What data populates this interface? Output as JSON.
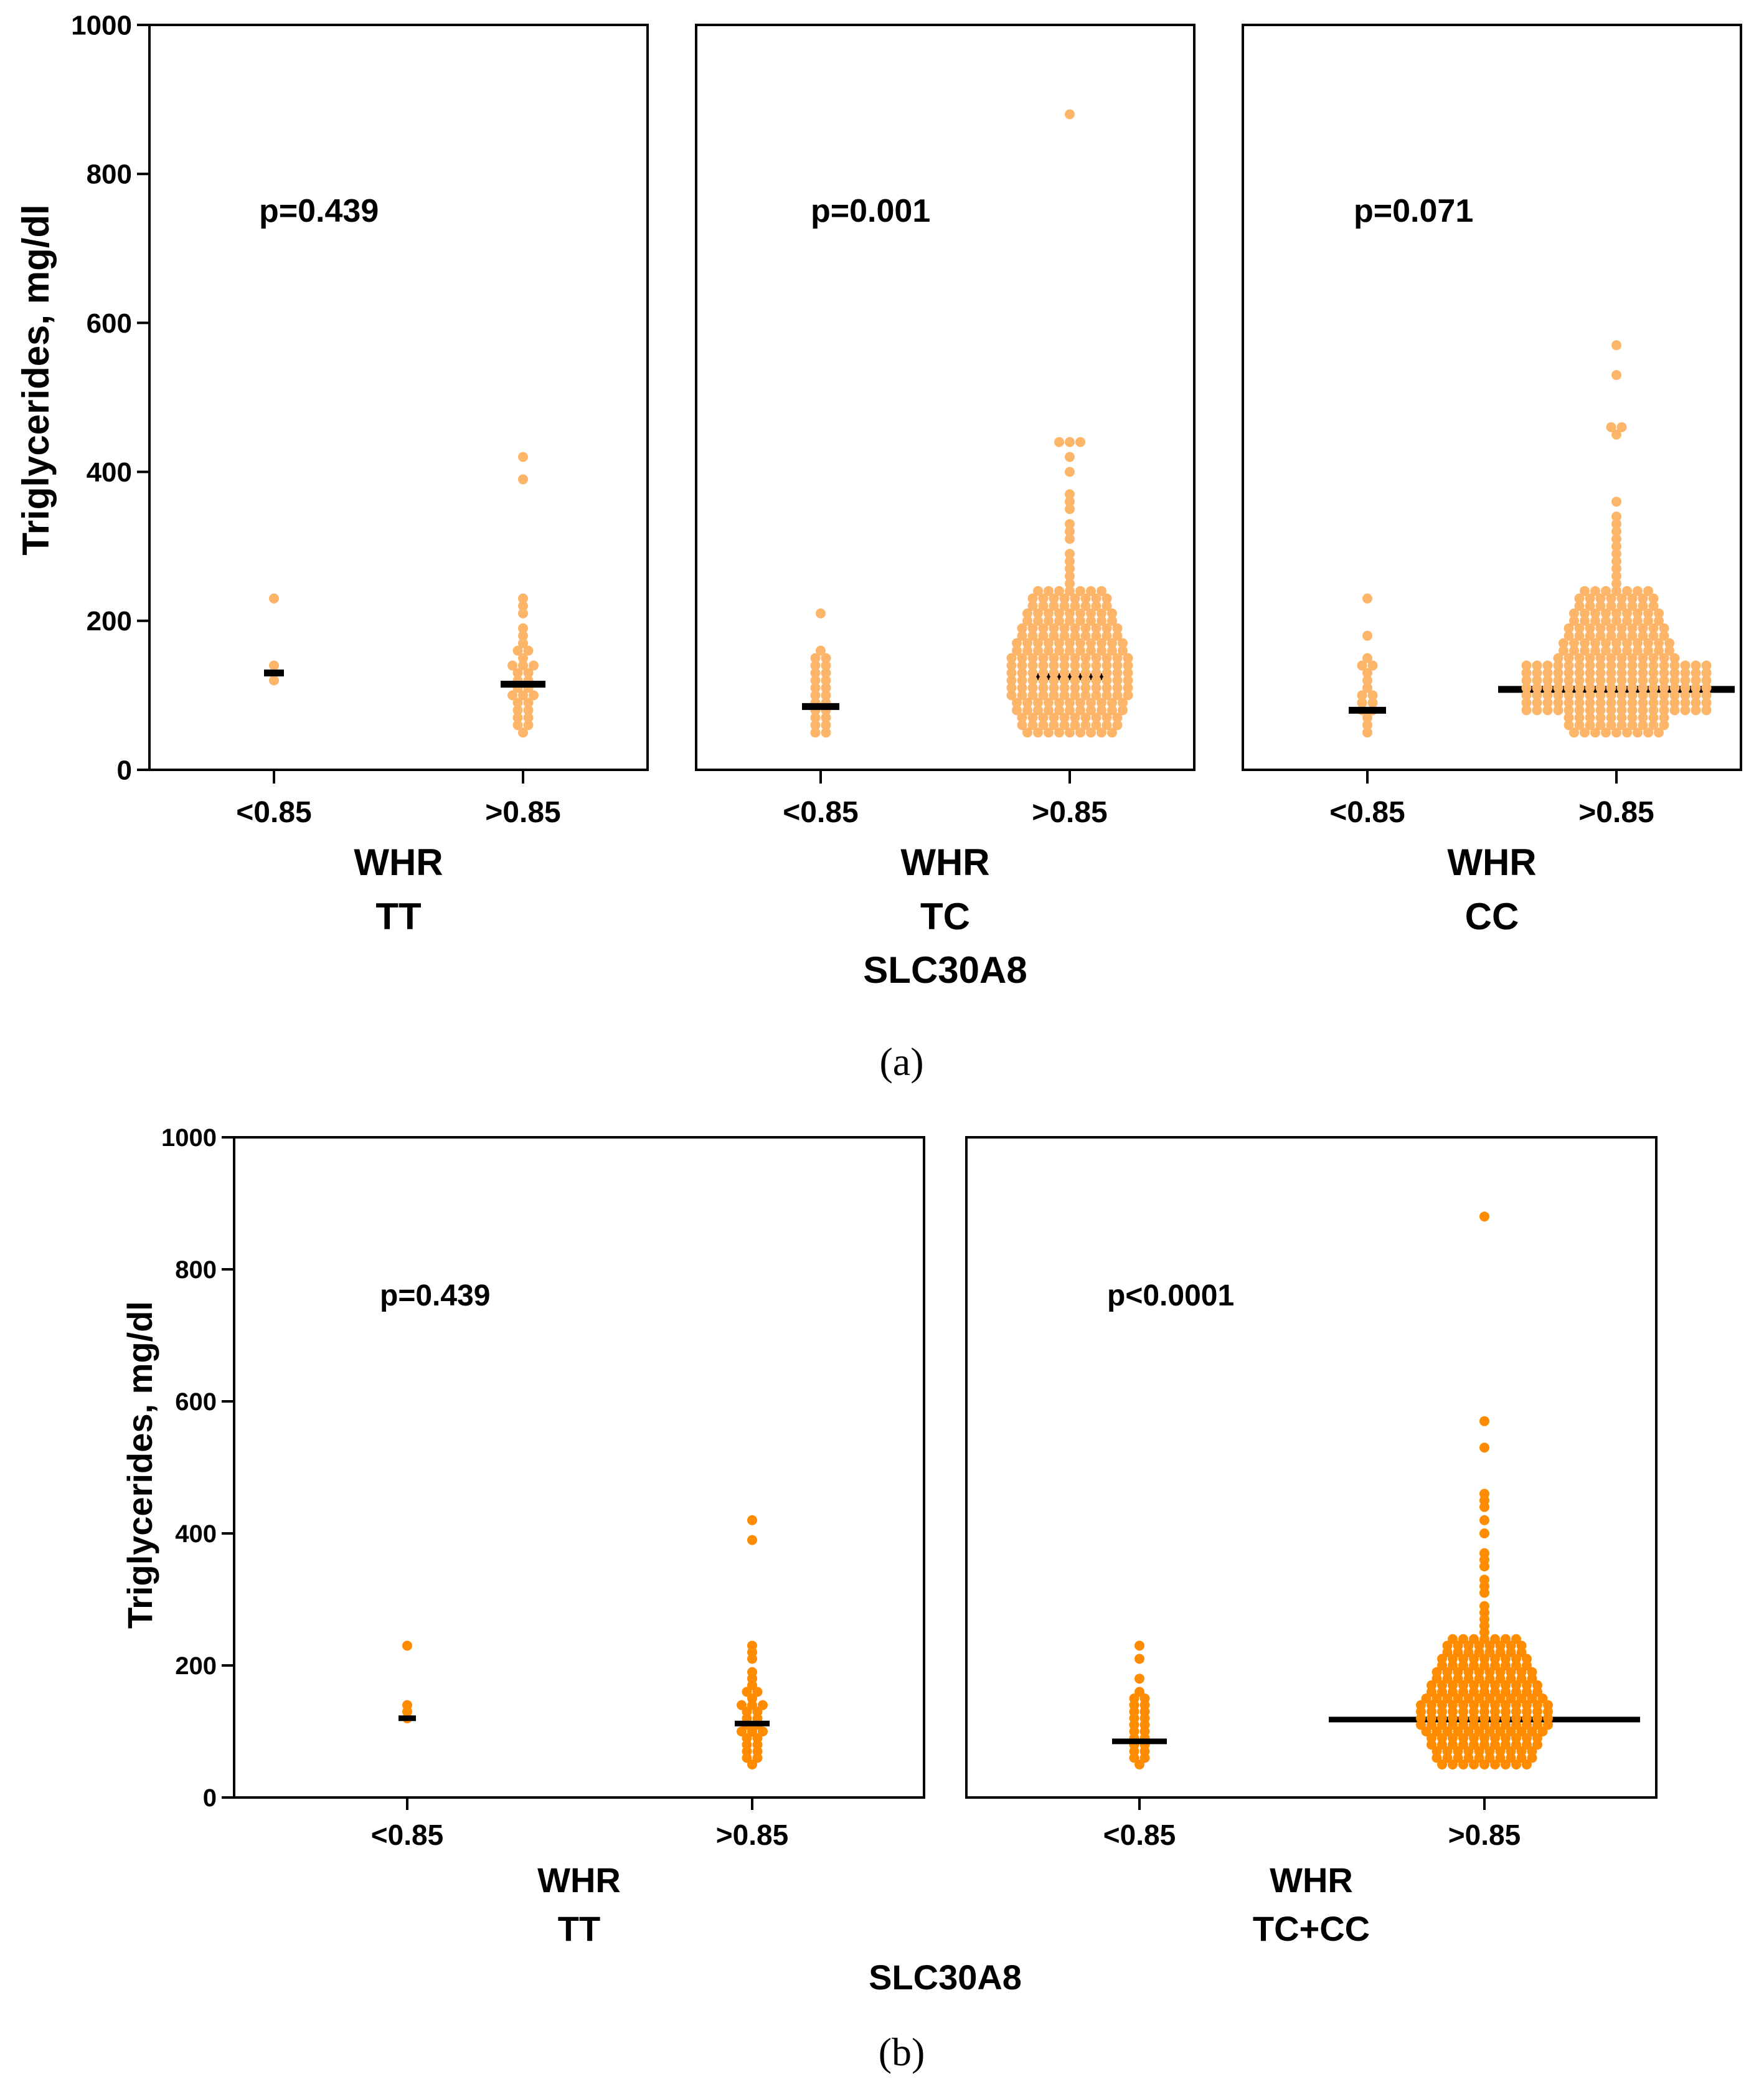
{
  "chart_data": [
    {
      "figure": "a",
      "caption": "(a)",
      "type": "scatter",
      "subtype": "dot-plot with median lines",
      "ylabel": "Triglycerides, mg/dl",
      "ylim": [
        0,
        1000
      ],
      "yticks": [
        "0",
        "200",
        "400",
        "600",
        "800",
        "1000"
      ],
      "xlabel_shared": "SLC30A8",
      "color": "#fdb56a",
      "panels": [
        {
          "genotype": "TT",
          "xlabel": "WHR",
          "p_value": "p=0.439",
          "categories": [
            "<0.85",
            ">0.85"
          ],
          "groups": [
            {
              "category": "<0.85",
              "median": 130,
              "values": [
                230,
                135,
                130,
                120
              ]
            },
            {
              "category": ">0.85",
              "median": 115,
              "values": [
                418,
                388,
                230,
                218,
                205,
                192,
                180,
                170,
                160,
                155,
                150,
                140,
                135,
                135,
                130,
                125,
                120,
                115,
                110,
                105,
                100,
                98,
                95,
                90,
                85,
                80,
                75,
                70,
                65,
                60,
                55,
                50
              ]
            }
          ]
        },
        {
          "genotype": "TC",
          "xlabel": "WHR",
          "p_value": "p=0.001",
          "categories": [
            "<0.85",
            ">0.85"
          ],
          "groups": [
            {
              "category": "<0.85",
              "median": 85,
              "values": [
                205,
                160,
                150,
                145,
                140,
                135,
                130,
                125,
                120,
                115,
                110,
                105,
                100,
                95,
                90,
                85,
                80,
                75,
                70,
                65,
                60,
                55,
                50,
                50
              ]
            },
            {
              "category": ">0.85",
              "median": 125,
              "values": [
                880,
                443,
                443,
                443,
                420,
                400,
                370,
                360,
                345,
                330,
                320,
                305,
                290,
                280,
                270,
                260,
                250
              ]
            },
            {
              "category": ">0.85",
              "median": 125,
              "values": [
                240,
                230,
                220,
                210,
                200,
                190,
                180,
                170,
                160,
                150,
                140,
                130,
                120,
                110,
                100,
                90,
                80,
                70,
                60,
                50
              ]
            }
          ]
        },
        {
          "genotype": "CC",
          "xlabel": "WHR",
          "p_value": "p=0.071",
          "categories": [
            "<0.85",
            ">0.85"
          ],
          "groups": [
            {
              "category": "<0.85",
              "median": 80,
              "values": [
                230,
                180,
                150,
                140,
                135,
                130,
                120,
                110,
                100,
                95,
                90,
                85,
                80,
                75,
                70,
                60,
                50
              ]
            },
            {
              "category": ">0.85",
              "median": 108,
              "values": [
                570,
                525,
                460,
                460,
                445,
                355,
                340,
                330,
                320,
                310,
                300,
                290,
                280,
                270,
                260,
                250
              ]
            },
            {
              "category": ">0.85",
              "median": 108,
              "values": [
                240,
                230,
                220,
                210,
                200,
                190,
                180,
                170,
                160,
                150,
                140,
                130,
                120,
                110,
                100,
                90,
                80,
                70,
                60,
                50
              ]
            }
          ]
        }
      ]
    },
    {
      "figure": "b",
      "caption": "(b)",
      "type": "scatter",
      "subtype": "dot-plot with median lines",
      "ylabel": "Triglycerides, mg/dl",
      "ylim": [
        0,
        1000
      ],
      "yticks": [
        "0",
        "200",
        "400",
        "600",
        "800",
        "1000"
      ],
      "xlabel_shared": "SLC30A8",
      "color": "#ff8c00",
      "panels": [
        {
          "genotype": "TT",
          "xlabel": "WHR",
          "p_value": "p=0.439",
          "categories": [
            "<0.85",
            ">0.85"
          ],
          "groups": [
            {
              "category": "<0.85",
              "median": 120,
              "values": [
                230,
                135,
                125,
                120
              ]
            },
            {
              "category": ">0.85",
              "median": 112,
              "values": [
                418,
                388,
                230,
                218,
                205,
                192,
                180,
                170,
                160,
                155,
                150,
                140,
                135,
                135,
                130,
                125,
                120,
                115,
                110,
                105,
                100,
                98,
                95,
                90,
                85,
                80,
                75,
                70,
                65,
                60,
                55,
                50
              ]
            }
          ]
        },
        {
          "genotype": "TC+CC",
          "xlabel": "WHR",
          "p_value": "p<0.0001",
          "categories": [
            "<0.85",
            ">0.85"
          ],
          "groups": [
            {
              "category": "<0.85",
              "median": 85,
              "values": [
                230,
                205,
                180,
                160,
                150,
                145,
                140,
                135,
                130,
                125,
                120,
                115,
                110,
                105,
                100,
                95,
                90,
                85,
                80,
                75,
                70,
                65,
                60,
                55,
                50
              ]
            },
            {
              "category": ">0.85",
              "median": 118,
              "values": [
                880,
                570,
                525,
                460,
                445,
                440,
                420,
                400,
                370,
                360,
                345,
                330,
                320,
                305,
                290,
                280,
                270,
                260,
                250
              ]
            },
            {
              "category": ">0.85",
              "median": 118,
              "values": [
                240,
                230,
                220,
                210,
                200,
                190,
                180,
                170,
                160,
                150,
                140,
                130,
                120,
                110,
                100,
                90,
                80,
                70,
                60,
                50
              ]
            }
          ]
        }
      ]
    }
  ]
}
